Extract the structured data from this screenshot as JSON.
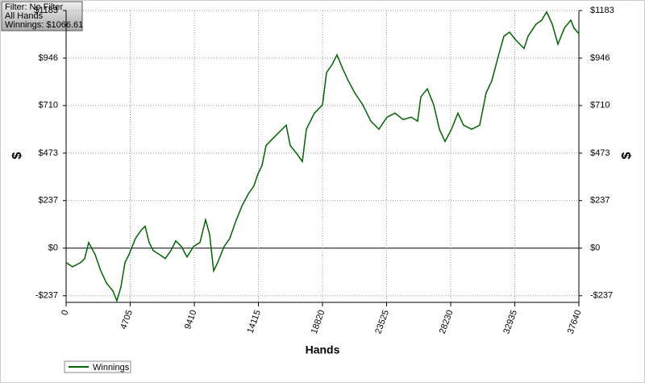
{
  "chart_data": {
    "type": "line",
    "annotations": [
      "Filter: No Filter",
      "All Hands",
      "Winnings: $1066.61"
    ],
    "xlabel": "Hands",
    "ylabel": "$",
    "x": [
      0,
      473,
      1065,
      1361,
      1657,
      2130,
      2545,
      2959,
      3432,
      3728,
      4024,
      4320,
      4616,
      5089,
      5504,
      5800,
      6096,
      6391,
      6865,
      7279,
      7693,
      8048,
      8463,
      8877,
      9350,
      9824,
      10238,
      10534,
      10830,
      11126,
      11599,
      12014,
      12428,
      12901,
      13375,
      13789,
      14085,
      14381,
      14677,
      15268,
      15860,
      16156,
      16452,
      16925,
      17340,
      17636,
      18227,
      18819,
      19115,
      19529,
      19884,
      20299,
      20713,
      21186,
      21778,
      22370,
      22962,
      23554,
      24145,
      24737,
      25329,
      25802,
      26039,
      26513,
      26986,
      27400,
      27815,
      28288,
      28761,
      29176,
      29767,
      30359,
      30833,
      31247,
      31720,
      32135,
      32549,
      33022,
      33614,
      33910,
      34502,
      34916,
      35271,
      35686,
      36100,
      36574,
      37047,
      37284,
      37640
    ],
    "series": [
      {
        "name": "Winnings",
        "color": "#006400",
        "values": [
          -72,
          -93,
          -72,
          -52,
          28,
          -32,
          -113,
          -173,
          -213,
          -262,
          -193,
          -72,
          -32,
          48,
          89,
          109,
          28,
          -12,
          -32,
          -52,
          -12,
          36,
          8,
          -44,
          8,
          28,
          141,
          68,
          -113,
          -72,
          8,
          48,
          129,
          209,
          270,
          310,
          370,
          411,
          511,
          552,
          592,
          612,
          511,
          471,
          431,
          592,
          672,
          713,
          874,
          914,
          962,
          894,
          833,
          773,
          713,
          632,
          592,
          652,
          672,
          640,
          652,
          632,
          753,
          793,
          713,
          592,
          531,
          592,
          672,
          612,
          592,
          612,
          773,
          833,
          954,
          1055,
          1075,
          1035,
          994,
          1055,
          1115,
          1135,
          1176,
          1115,
          1015,
          1095,
          1135,
          1095,
          1067
        ]
      }
    ],
    "xlim": [
      0,
      37640
    ],
    "ylim": [
      -270,
      1183
    ],
    "xticks": [
      0,
      4705,
      9410,
      14115,
      18820,
      23525,
      28230,
      32935,
      37640
    ],
    "yticks": [
      {
        "value": -237,
        "label": "-$237"
      },
      {
        "value": 0,
        "label": "$0"
      },
      {
        "value": 237,
        "label": "$237"
      },
      {
        "value": 473,
        "label": "$473"
      },
      {
        "value": 710,
        "label": "$710"
      },
      {
        "value": 946,
        "label": "$946"
      },
      {
        "value": 1183,
        "label": "$1183"
      }
    ],
    "grid": true,
    "legend": "bottom-left"
  }
}
